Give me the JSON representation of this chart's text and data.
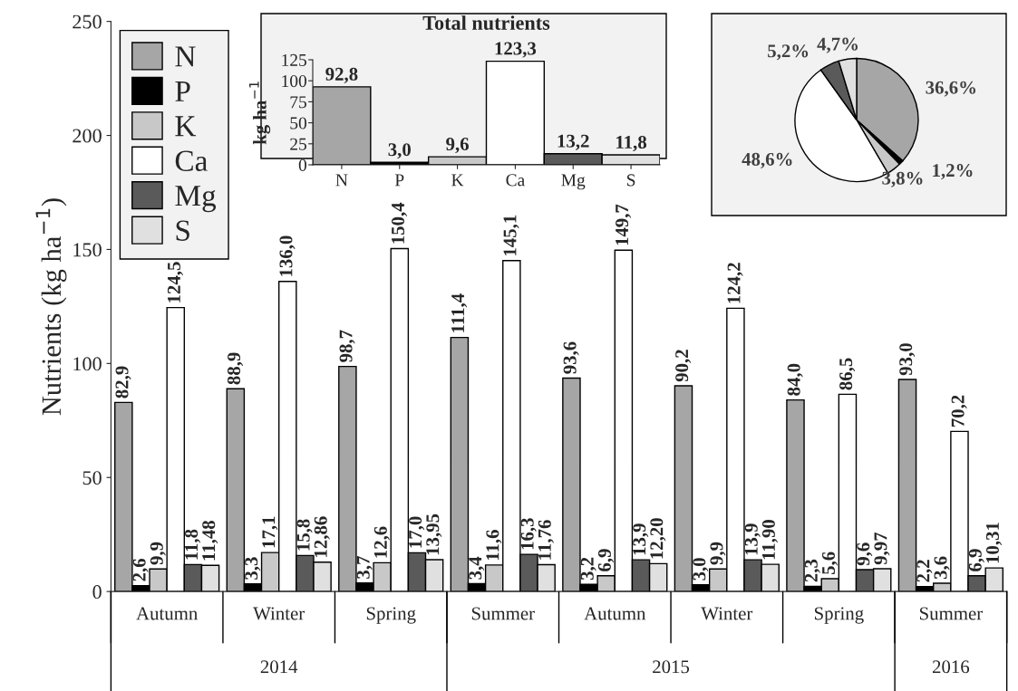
{
  "chart_data": [
    {
      "type": "bar",
      "ylabel": "Nutrients (kg ha$^{−1}$)",
      "categories": [
        "Autumn",
        "Winter",
        "Spring",
        "Summer",
        "Autumn",
        "Winter",
        "Spring",
        "Summer"
      ],
      "ylim": [
        0,
        250
      ],
      "yticks": [
        0,
        50,
        100,
        150,
        200,
        250
      ],
      "legend": "top left",
      "grid": false,
      "annotations": [
        "2014",
        "2015",
        "2016"
      ],
      "series": [
        {
          "name": "N",
          "color": "#a6a6a6",
          "values": [
            82.9,
            88.9,
            98.7,
            111.4,
            93.6,
            90.2,
            84.0,
            93.0
          ],
          "value_labels": [
            "82,9",
            "88,9",
            "98,7",
            "111,4",
            "93,6",
            "90,2",
            "84,0",
            "93,0"
          ]
        },
        {
          "name": "P",
          "color": "#000000",
          "values": [
            2.6,
            3.3,
            3.7,
            3.4,
            3.2,
            3.0,
            2.3,
            2.2
          ],
          "value_labels": [
            "2,6",
            "3,3",
            "3,7",
            "3,4",
            "3,2",
            "3,0",
            "2,3",
            "2,2"
          ]
        },
        {
          "name": "K",
          "color": "#c8c8c8",
          "values": [
            9.9,
            17.1,
            12.6,
            11.6,
            6.9,
            9.9,
            5.6,
            3.6
          ],
          "value_labels": [
            "9,9",
            "17,1",
            "12,6",
            "11,6",
            "6,9",
            "9,9",
            "5,6",
            "3,6"
          ]
        },
        {
          "name": "Ca",
          "color": "#ffffff",
          "values": [
            124.5,
            136.0,
            150.4,
            145.1,
            149.7,
            124.2,
            86.5,
            70.2
          ],
          "value_labels": [
            "124,5",
            "136,0",
            "150,4",
            "145,1",
            "149,7",
            "124,2",
            "86,5",
            "70,2"
          ]
        },
        {
          "name": "Mg",
          "color": "#5a5a5a",
          "values": [
            11.8,
            15.8,
            17.0,
            16.3,
            13.9,
            13.9,
            9.6,
            6.9
          ],
          "value_labels": [
            "11,8",
            "15,8",
            "17,0",
            "16,3",
            "13,9",
            "13,9",
            "9,6",
            "6,9"
          ]
        },
        {
          "name": "S",
          "color": "#e0e0e0",
          "values": [
            11.48,
            12.86,
            13.95,
            11.76,
            12.2,
            11.9,
            9.97,
            10.31
          ],
          "value_labels": [
            "11,48",
            "12,86",
            "13,95",
            "11,76",
            "12,20",
            "11,90",
            "9,97",
            "10,31"
          ]
        }
      ]
    },
    {
      "type": "bar",
      "title": "Total nutrients",
      "ylabel": "kg ha$^{−1}$",
      "categories": [
        "N",
        "P",
        "K",
        "Ca",
        "Mg",
        "S"
      ],
      "values": [
        92.8,
        3.0,
        9.6,
        123.3,
        13.2,
        11.8
      ],
      "value_labels": [
        "92,8",
        "3,0",
        "9,6",
        "123,3",
        "13,2",
        "11,8"
      ],
      "colors": [
        "#a6a6a6",
        "#000000",
        "#c8c8c8",
        "#ffffff",
        "#5a5a5a",
        "#e0e0e0"
      ],
      "ylim": [
        0,
        125
      ],
      "yticks": [
        0,
        25,
        50,
        75,
        100,
        125
      ],
      "grid": false
    },
    {
      "type": "pie",
      "categories": [
        null,
        null,
        null,
        null,
        null,
        null
      ],
      "values": [
        36.6,
        1.2,
        3.8,
        48.6,
        5.2,
        4.7
      ],
      "value_labels": [
        "36,6%",
        "1,2%",
        "3,8%",
        "48,6%",
        "5,2%",
        "4,7%"
      ],
      "colors": [
        "#a6a6a6",
        "#000000",
        "#c8c8c8",
        "#ffffff",
        "#5a5a5a",
        "#e0e0e0"
      ]
    }
  ]
}
